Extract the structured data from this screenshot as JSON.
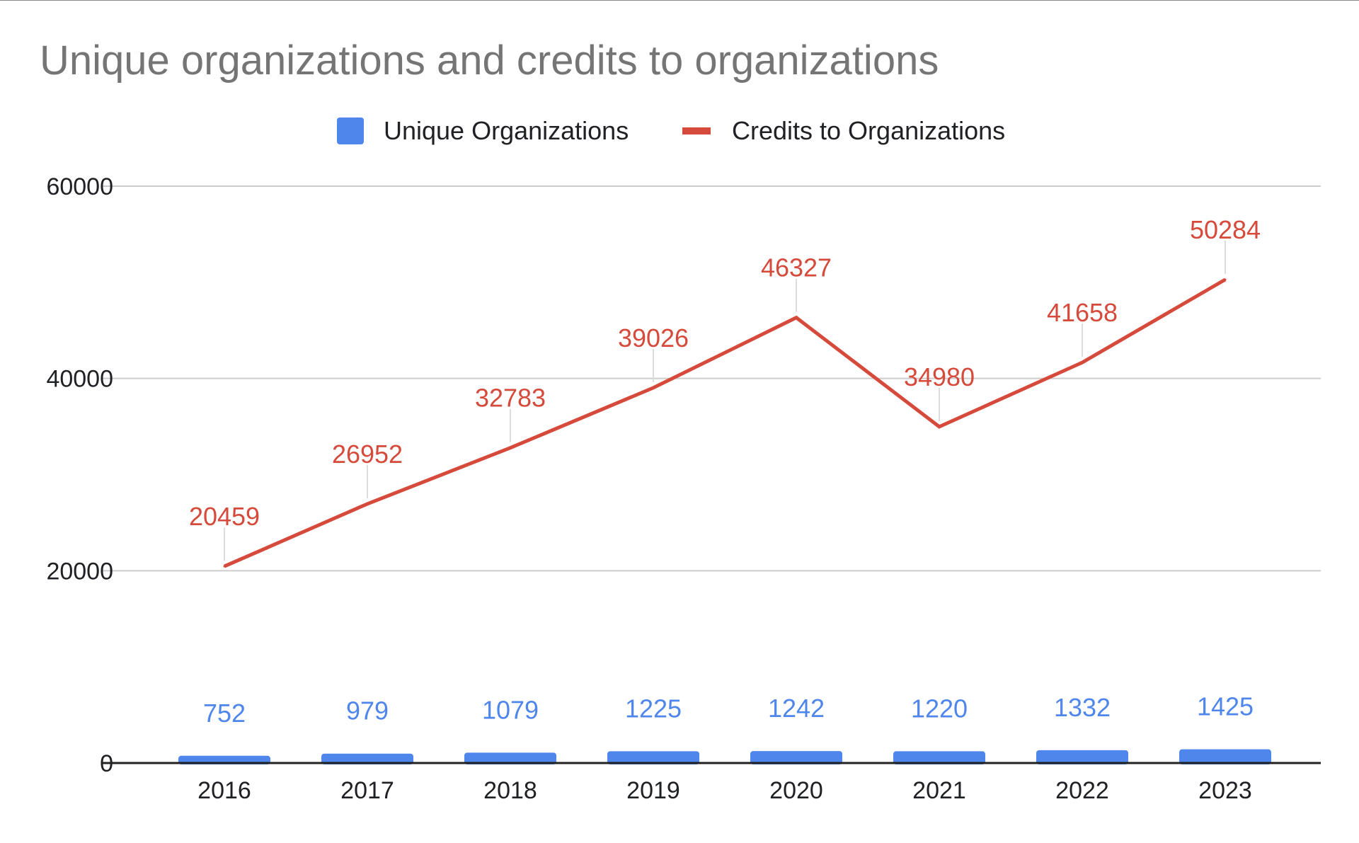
{
  "chart_data": {
    "type": "bar",
    "title": "Unique organizations and credits to organizations",
    "xlabel": "",
    "ylabel": "",
    "categories": [
      "2016",
      "2017",
      "2018",
      "2019",
      "2020",
      "2021",
      "2022",
      "2023"
    ],
    "ylim": [
      0,
      60000
    ],
    "yticks": [
      "0",
      "20000",
      "40000",
      "60000"
    ],
    "grid": true,
    "legend_position": "top",
    "series": [
      {
        "name": "Unique Organizations",
        "type": "bar",
        "color": "#4f86ec",
        "values": [
          752,
          979,
          1079,
          1225,
          1242,
          1220,
          1332,
          1425
        ],
        "labels": [
          "752",
          "979",
          "1079",
          "1225",
          "1242",
          "1220",
          "1332",
          "1425"
        ]
      },
      {
        "name": "Credits to Organizations",
        "type": "line",
        "color": "#d64a3b",
        "values": [
          20459,
          26952,
          32783,
          39026,
          46327,
          34980,
          41658,
          50284
        ],
        "labels": [
          "20459",
          "26952",
          "32783",
          "39026",
          "46327",
          "34980",
          "41658",
          "50284"
        ]
      }
    ]
  }
}
